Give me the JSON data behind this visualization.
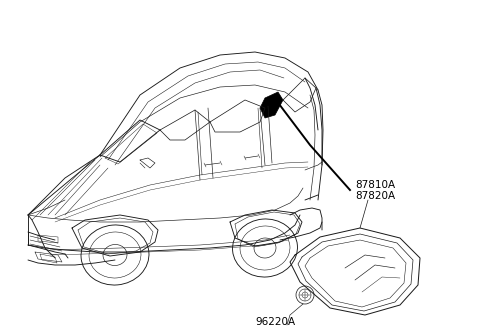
{
  "background_color": "#ffffff",
  "line_color": "#1a1a1a",
  "black_fill": "#000000",
  "label_87810A": "87810A",
  "label_87820A": "87820A",
  "label_96220A": "96220A",
  "label_fontsize": 7.5,
  "leader_lw": 1.4,
  "body_lw": 0.65,
  "detail_lw": 0.45
}
